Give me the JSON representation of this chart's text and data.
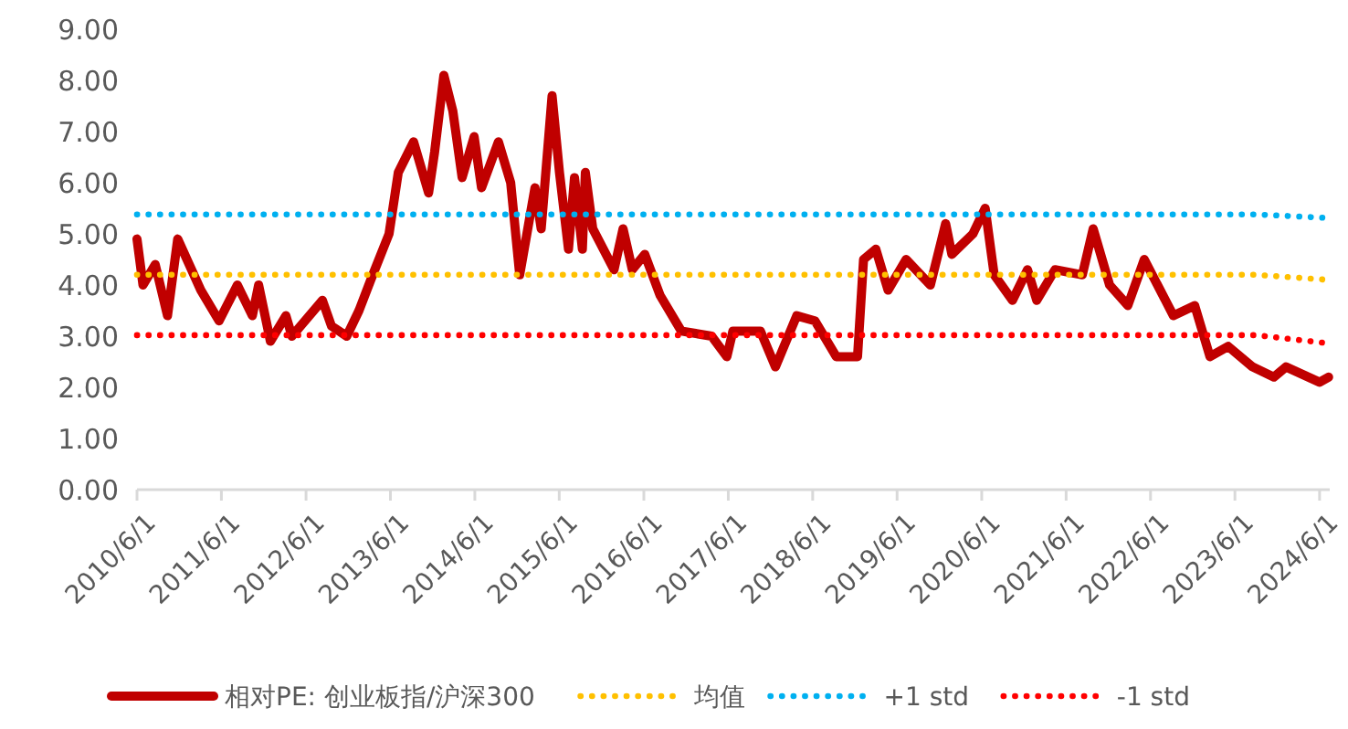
{
  "chart_data": {
    "type": "line",
    "xlim": [
      "2010-06-01",
      "2024-07-15"
    ],
    "xticks": [
      {
        "value": "2010-06-01",
        "label": "2010/6/1"
      },
      {
        "value": "2011-06-01",
        "label": "2011/6/1"
      },
      {
        "value": "2012-06-01",
        "label": "2012/6/1"
      },
      {
        "value": "2013-06-01",
        "label": "2013/6/1"
      },
      {
        "value": "2014-06-01",
        "label": "2014/6/1"
      },
      {
        "value": "2015-06-01",
        "label": "2015/6/1"
      },
      {
        "value": "2016-06-01",
        "label": "2016/6/1"
      },
      {
        "value": "2017-06-01",
        "label": "2017/6/1"
      },
      {
        "value": "2018-06-01",
        "label": "2018/6/1"
      },
      {
        "value": "2019-06-01",
        "label": "2019/6/1"
      },
      {
        "value": "2020-06-01",
        "label": "2020/6/1"
      },
      {
        "value": "2021-06-01",
        "label": "2021/6/1"
      },
      {
        "value": "2022-06-01",
        "label": "2022/6/1"
      },
      {
        "value": "2023-06-01",
        "label": "2023/6/1"
      },
      {
        "value": "2024-06-01",
        "label": "2024/6/1"
      }
    ],
    "ylim": [
      0,
      9
    ],
    "yticks": [
      {
        "value": 0,
        "label": "0.00"
      },
      {
        "value": 1,
        "label": "1.00"
      },
      {
        "value": 2,
        "label": "2.00"
      },
      {
        "value": 3,
        "label": "3.00"
      },
      {
        "value": 4,
        "label": "4.00"
      },
      {
        "value": 5,
        "label": "5.00"
      },
      {
        "value": 6,
        "label": "6.00"
      },
      {
        "value": 7,
        "label": "7.00"
      },
      {
        "value": 8,
        "label": "8.00"
      },
      {
        "value": 9,
        "label": "9.00"
      }
    ],
    "grid": false,
    "legend": "bottom",
    "marker": "none",
    "series": [
      {
        "name": "相对PE: 创业板指/沪深300",
        "color": "#c00000",
        "line_style": "solid",
        "x": [
          "2010-06-01",
          "2010-06-27",
          "2010-08-19",
          "2010-10-11",
          "2010-11-24",
          "2011-03-04",
          "2011-05-22",
          "2011-08-09",
          "2011-10-13",
          "2011-11-09",
          "2011-12-30",
          "2012-03-06",
          "2012-04-01",
          "2012-08-11",
          "2012-09-19",
          "2012-11-24",
          "2013-01-16",
          "2013-03-08",
          "2013-05-26",
          "2013-07-05",
          "2013-09-09",
          "2013-11-13",
          "2013-12-09",
          "2014-01-18",
          "2014-02-26",
          "2014-04-07",
          "2014-05-29",
          "2014-06-30",
          "2014-09-11",
          "2014-11-03",
          "2014-12-12",
          "2015-02-16",
          "2015-03-15",
          "2015-05-01",
          "2015-06-02",
          "2015-07-11",
          "2015-08-06",
          "2015-09-09",
          "2015-09-22",
          "2015-10-24",
          "2016-01-24",
          "2016-03-03",
          "2016-04-12",
          "2016-06-05",
          "2016-08-10",
          "2016-11-10",
          "2017-03-21",
          "2017-05-26",
          "2017-06-21",
          "2017-10-18",
          "2017-12-22",
          "2018-03-24",
          "2018-06-11",
          "2018-09-11",
          "2018-12-12",
          "2019-01-07",
          "2019-03-01",
          "2019-04-23",
          "2019-07-10",
          "2019-10-23",
          "2019-12-28",
          "2020-01-24",
          "2020-04-24",
          "2020-06-16",
          "2020-07-25",
          "2020-10-12",
          "2020-12-16",
          "2021-01-25",
          "2021-04-14",
          "2021-08-10",
          "2021-09-26",
          "2021-12-06",
          "2022-02-23",
          "2022-05-05",
          "2022-09-08",
          "2022-12-09",
          "2023-02-13",
          "2023-05-03",
          "2023-08-16",
          "2023-11-16",
          "2024-01-08",
          "2024-06-01",
          "2024-07-10"
        ],
        "values": [
          4.9,
          4.0,
          4.4,
          3.4,
          4.9,
          3.9,
          3.3,
          4.0,
          3.4,
          4.0,
          2.9,
          3.4,
          3.0,
          3.7,
          3.2,
          3.0,
          3.5,
          4.1,
          5.0,
          6.2,
          6.8,
          5.8,
          6.6,
          8.1,
          7.4,
          6.1,
          6.9,
          5.9,
          6.8,
          6.0,
          4.2,
          5.9,
          5.1,
          7.7,
          6.2,
          4.7,
          6.1,
          4.7,
          6.2,
          5.1,
          4.3,
          5.1,
          4.3,
          4.6,
          3.8,
          3.1,
          3.0,
          2.6,
          3.1,
          3.1,
          2.4,
          3.4,
          3.3,
          2.6,
          2.6,
          4.5,
          4.7,
          3.9,
          4.5,
          4.0,
          5.2,
          4.6,
          5.0,
          5.5,
          4.2,
          3.7,
          4.3,
          3.7,
          4.3,
          4.2,
          5.1,
          4.0,
          3.6,
          4.5,
          3.4,
          3.6,
          2.6,
          2.8,
          2.4,
          2.2,
          2.4,
          2.1,
          2.2
        ]
      },
      {
        "name": "均值",
        "color": "#ffc000",
        "line_style": "dotted",
        "x": [
          "2010-06-01",
          "2023-09-01",
          "2024-07-10"
        ],
        "values": [
          4.2,
          4.2,
          4.1
        ]
      },
      {
        "name": "+1 std",
        "color": "#00b0f0",
        "line_style": "dotted",
        "x": [
          "2010-06-01",
          "2023-09-01",
          "2024-07-10"
        ],
        "values": [
          5.38,
          5.38,
          5.31
        ]
      },
      {
        "name": "-1 std",
        "color": "#ff0000",
        "line_style": "dotted",
        "x": [
          "2010-06-01",
          "2023-09-01",
          "2024-07-10"
        ],
        "values": [
          3.02,
          3.02,
          2.86
        ]
      }
    ]
  }
}
